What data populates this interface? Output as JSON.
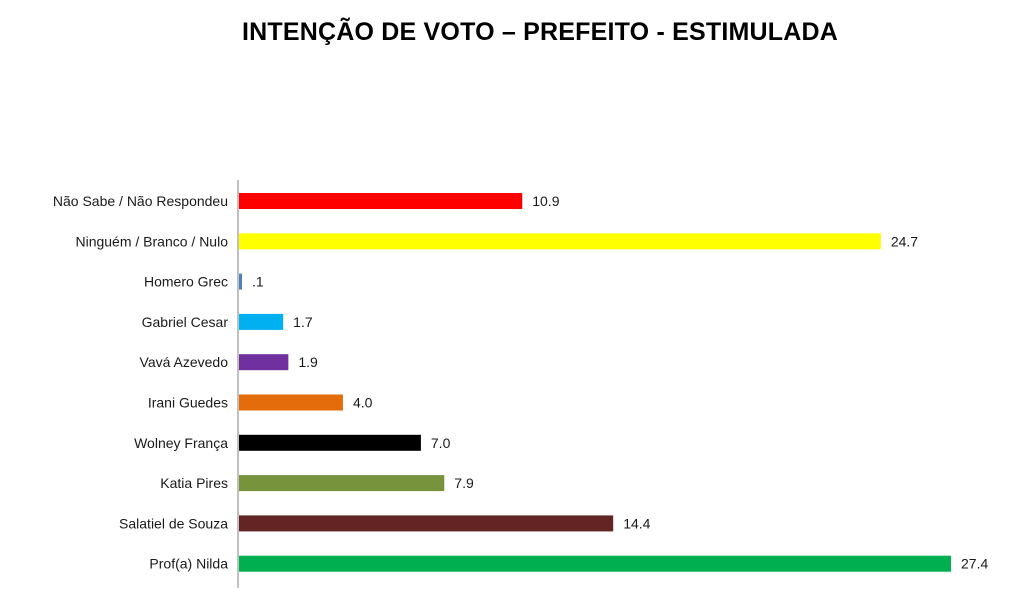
{
  "chart_data": {
    "type": "bar",
    "orientation": "horizontal",
    "title": "INTENÇÃO DE VOTO – PREFEITO - ESTIMULADA",
    "xlabel": "",
    "ylabel": "",
    "xlim": [
      0,
      27.4
    ],
    "grid": false,
    "legend": "none",
    "bars": [
      {
        "category": "Não Sabe / Não Respondeu",
        "value": 10.9,
        "label": "10.9",
        "color": "#ff0000"
      },
      {
        "category": "Ninguém / Branco / Nulo",
        "value": 24.7,
        "label": "24.7",
        "color": "#ffff00"
      },
      {
        "category": "Homero Grec",
        "value": 0.1,
        "label": ".1",
        "color": "#4f81bd"
      },
      {
        "category": "Gabriel Cesar",
        "value": 1.7,
        "label": "1.7",
        "color": "#00b0f0"
      },
      {
        "category": "Vavá Azevedo",
        "value": 1.9,
        "label": "1.9",
        "color": "#7030a0"
      },
      {
        "category": "Irani Guedes",
        "value": 4.0,
        "label": "4.0",
        "color": "#e46c0a"
      },
      {
        "category": "Wolney França",
        "value": 7.0,
        "label": "7.0",
        "color": "#000000"
      },
      {
        "category": "Katia Pires",
        "value": 7.9,
        "label": "7.9",
        "color": "#77933c"
      },
      {
        "category": "Salatiel de Souza",
        "value": 14.4,
        "label": "14.4",
        "color": "#632523"
      },
      {
        "category": "Prof(a) Nilda",
        "value": 27.4,
        "label": "27.4",
        "color": "#00b050"
      }
    ],
    "axis_color": "#808080"
  }
}
